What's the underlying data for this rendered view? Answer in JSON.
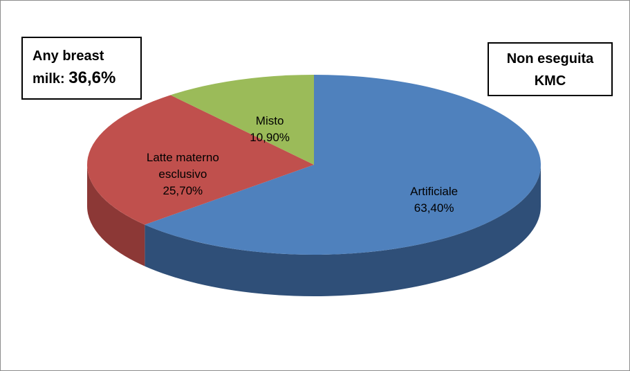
{
  "chart_data": {
    "type": "pie3d",
    "categories": [
      "Artificiale",
      "Latte materno esclusivo",
      "Misto"
    ],
    "values": [
      63.4,
      25.7,
      10.9
    ],
    "value_labels": [
      "63,40%",
      "25,70%",
      "10,90%"
    ],
    "colors": [
      "#4f81bd",
      "#c0504d",
      "#9bbb59"
    ],
    "side_colors": [
      "#2f4f78",
      "#8c3836",
      "#71893f"
    ],
    "annotations": [
      {
        "text": "Any breast milk:",
        "highlight": "36,6%"
      },
      {
        "text": "Non eseguita KMC"
      }
    ]
  }
}
